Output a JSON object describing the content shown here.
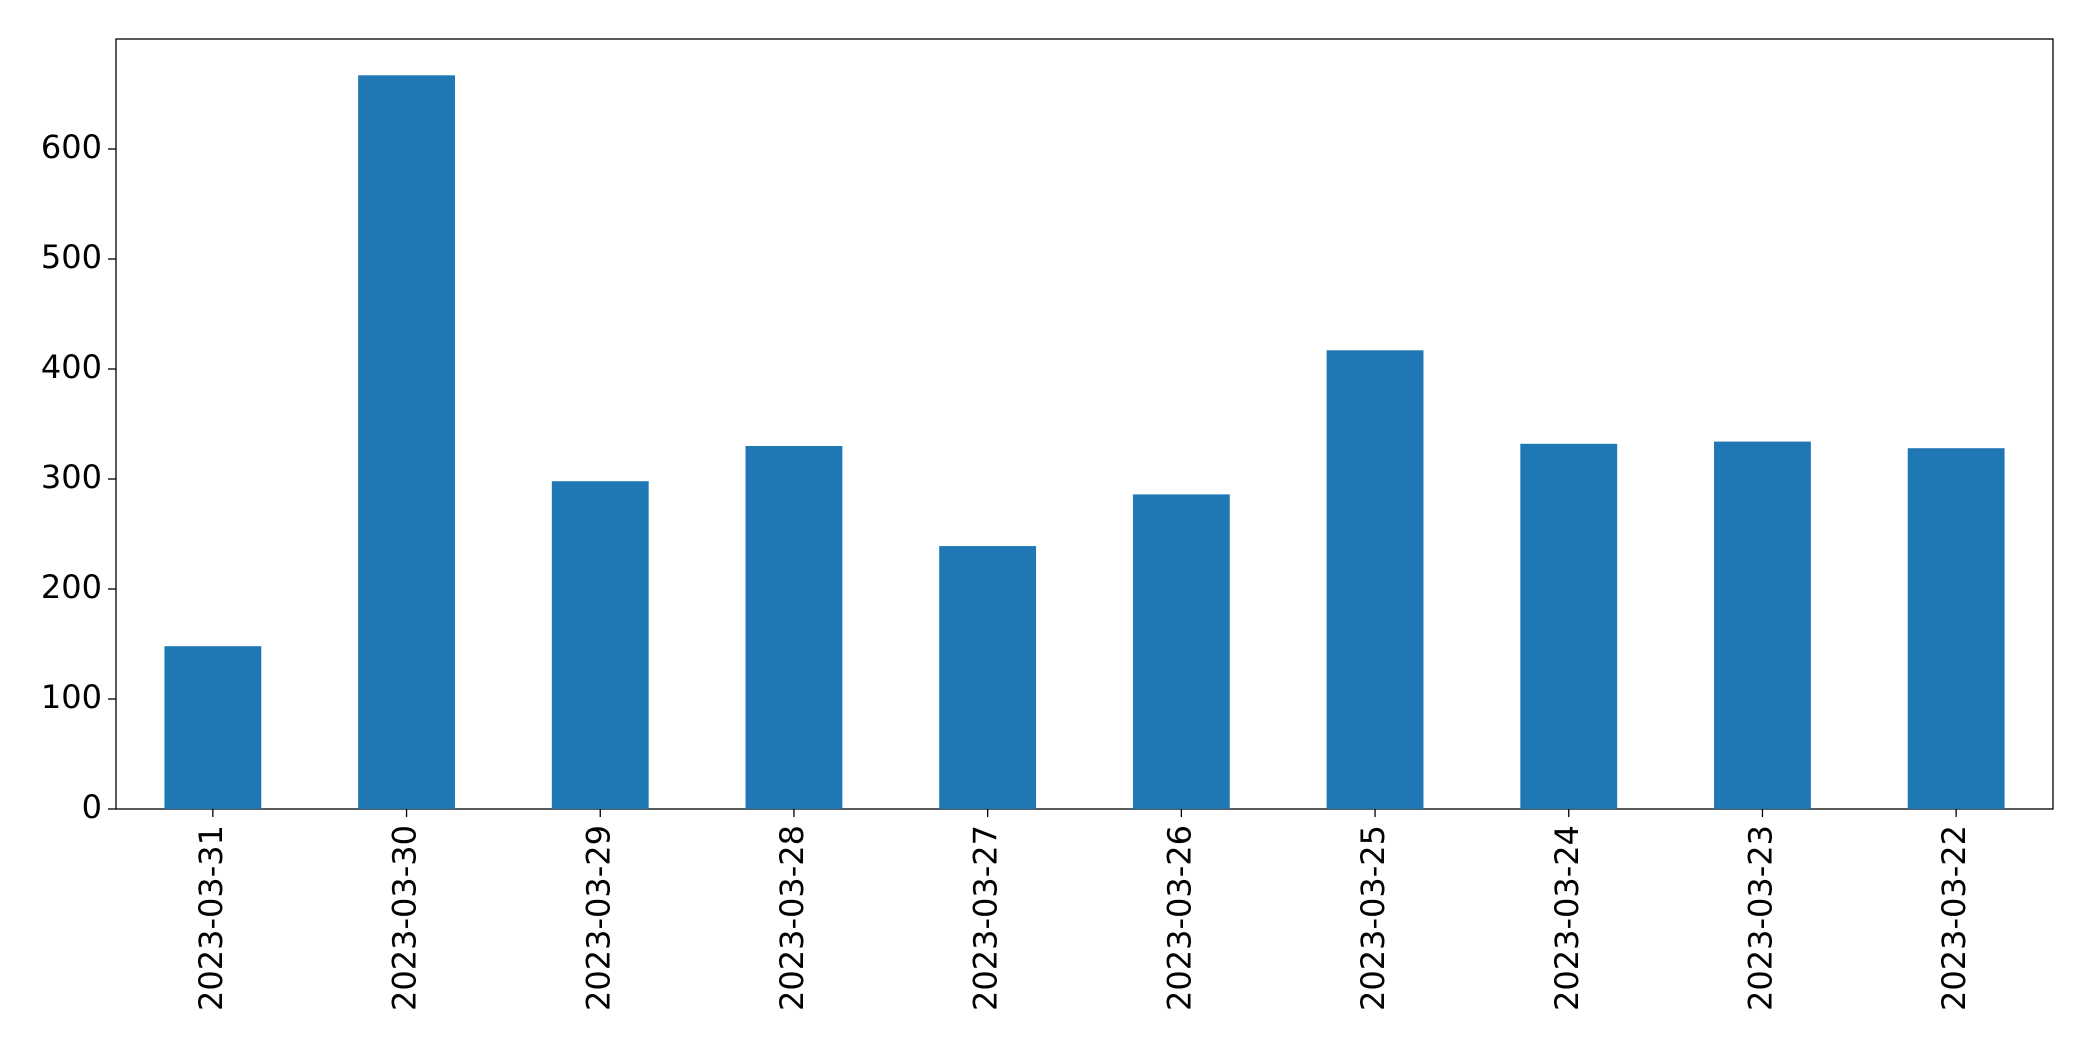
{
  "chart_data": {
    "type": "bar",
    "categories": [
      "2023-03-31",
      "2023-03-30",
      "2023-03-29",
      "2023-03-28",
      "2023-03-27",
      "2023-03-26",
      "2023-03-25",
      "2023-03-24",
      "2023-03-23",
      "2023-03-22"
    ],
    "values": [
      148,
      667,
      298,
      330,
      239,
      286,
      417,
      332,
      334,
      328
    ],
    "color": "#1f77b4",
    "ylim": [
      0,
      700
    ],
    "yticks": [
      0,
      100,
      200,
      300,
      400,
      500,
      600
    ],
    "grid": false
  }
}
